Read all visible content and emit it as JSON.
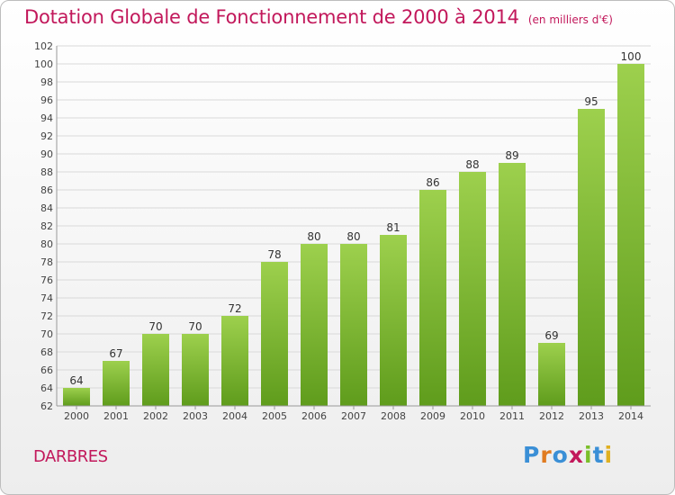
{
  "header": {
    "title": "Dotation Globale de Fonctionnement de 2000 à 2014",
    "unit": "(en milliers d'€)"
  },
  "footer": {
    "town": "DARBRES",
    "logo_text": "Proxiti"
  },
  "colors": {
    "title": "#c2185b",
    "bar_light": "#9dd04d",
    "bar_dark": "#5f9c1c",
    "grid": "#d9d9d9"
  },
  "chart_data": {
    "type": "bar",
    "title": "Dotation Globale de Fonctionnement de 2000 à 2014",
    "subtitle": "(en milliers d'€)",
    "xlabel": "",
    "ylabel": "",
    "categories": [
      "2000",
      "2001",
      "2002",
      "2003",
      "2004",
      "2005",
      "2006",
      "2007",
      "2008",
      "2009",
      "2010",
      "2011",
      "2012",
      "2013",
      "2014"
    ],
    "values": [
      64,
      67,
      70,
      70,
      72,
      78,
      80,
      80,
      81,
      86,
      88,
      89,
      69,
      95,
      100
    ],
    "ylim": [
      62,
      102
    ],
    "yticks": [
      62,
      64,
      66,
      68,
      70,
      72,
      74,
      76,
      78,
      80,
      82,
      84,
      86,
      88,
      90,
      92,
      94,
      96,
      98,
      100,
      102
    ],
    "grid": true,
    "data_labels": true
  }
}
